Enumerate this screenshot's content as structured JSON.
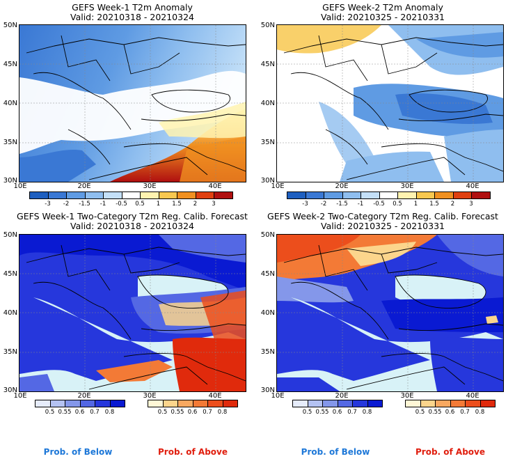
{
  "panels": [
    {
      "title": "GEFS Week-1 T2m Anomaly",
      "subtitle": "Valid: 20210318 - 20210324",
      "lat_labels": [
        "50N",
        "45N",
        "40N",
        "35N",
        "30N"
      ],
      "lon_labels": [
        "10E",
        "20E",
        "30E",
        "40E"
      ],
      "field": "anomaly-week1"
    },
    {
      "title": "GEFS Week-2 T2m Anomaly",
      "subtitle": "Valid: 20210325 - 20210331",
      "lat_labels": [
        "50N",
        "45N",
        "40N",
        "35N",
        "30N"
      ],
      "lon_labels": [
        "10E",
        "20E",
        "30E",
        "40E"
      ],
      "field": "anomaly-week2"
    },
    {
      "title": "GEFS Week-1 Two-Category T2m Reg. Calib. Forecast",
      "subtitle": "Valid: 20210318 - 20210324",
      "lat_labels": [
        "50N",
        "45N",
        "40N",
        "35N",
        "30N"
      ],
      "lon_labels": [
        "10E",
        "20E",
        "30E",
        "40E"
      ],
      "field": "prob-week1"
    },
    {
      "title": "GEFS Week-2 Two-Category T2m Reg. Calib. Forecast",
      "subtitle": "Valid: 20210325 - 20210331",
      "lat_labels": [
        "50N",
        "45N",
        "40N",
        "35N",
        "30N"
      ],
      "lon_labels": [
        "10E",
        "20E",
        "30E",
        "40E"
      ],
      "field": "prob-week2"
    }
  ],
  "anomaly_colorbar": {
    "ticks": [
      "-3",
      "-2",
      "-1.5",
      "-1",
      "-0.5",
      "0.5",
      "1",
      "1.5",
      "2",
      "3"
    ],
    "colors": [
      "#1e5fc0",
      "#3a78d4",
      "#5f9be3",
      "#8fbeef",
      "#c4e0f8",
      "#ffffff",
      "#fff3b0",
      "#f8c850",
      "#f09020",
      "#e04010",
      "#b01010"
    ]
  },
  "below_colorbar": {
    "ticks": [
      "0.5",
      "0.55",
      "0.6",
      "0.7",
      "0.8"
    ],
    "colors": [
      "#e6ecfb",
      "#b4c2f2",
      "#8497ea",
      "#5468e4",
      "#2637dc",
      "#0a1ad2"
    ]
  },
  "above_colorbar": {
    "ticks": [
      "0.5",
      "0.55",
      "0.6",
      "0.7",
      "0.8"
    ],
    "colors": [
      "#fff7d6",
      "#fcd58c",
      "#f8a860",
      "#f37a36",
      "#ec4e1c",
      "#e02a0c"
    ]
  },
  "legend": {
    "below_label": "Prob. of Below",
    "above_label": "Prob. of Above",
    "below_color": "#1e78d8",
    "above_color": "#e01e0e"
  },
  "colors": {
    "sea_fill": "#d8f2f7"
  }
}
